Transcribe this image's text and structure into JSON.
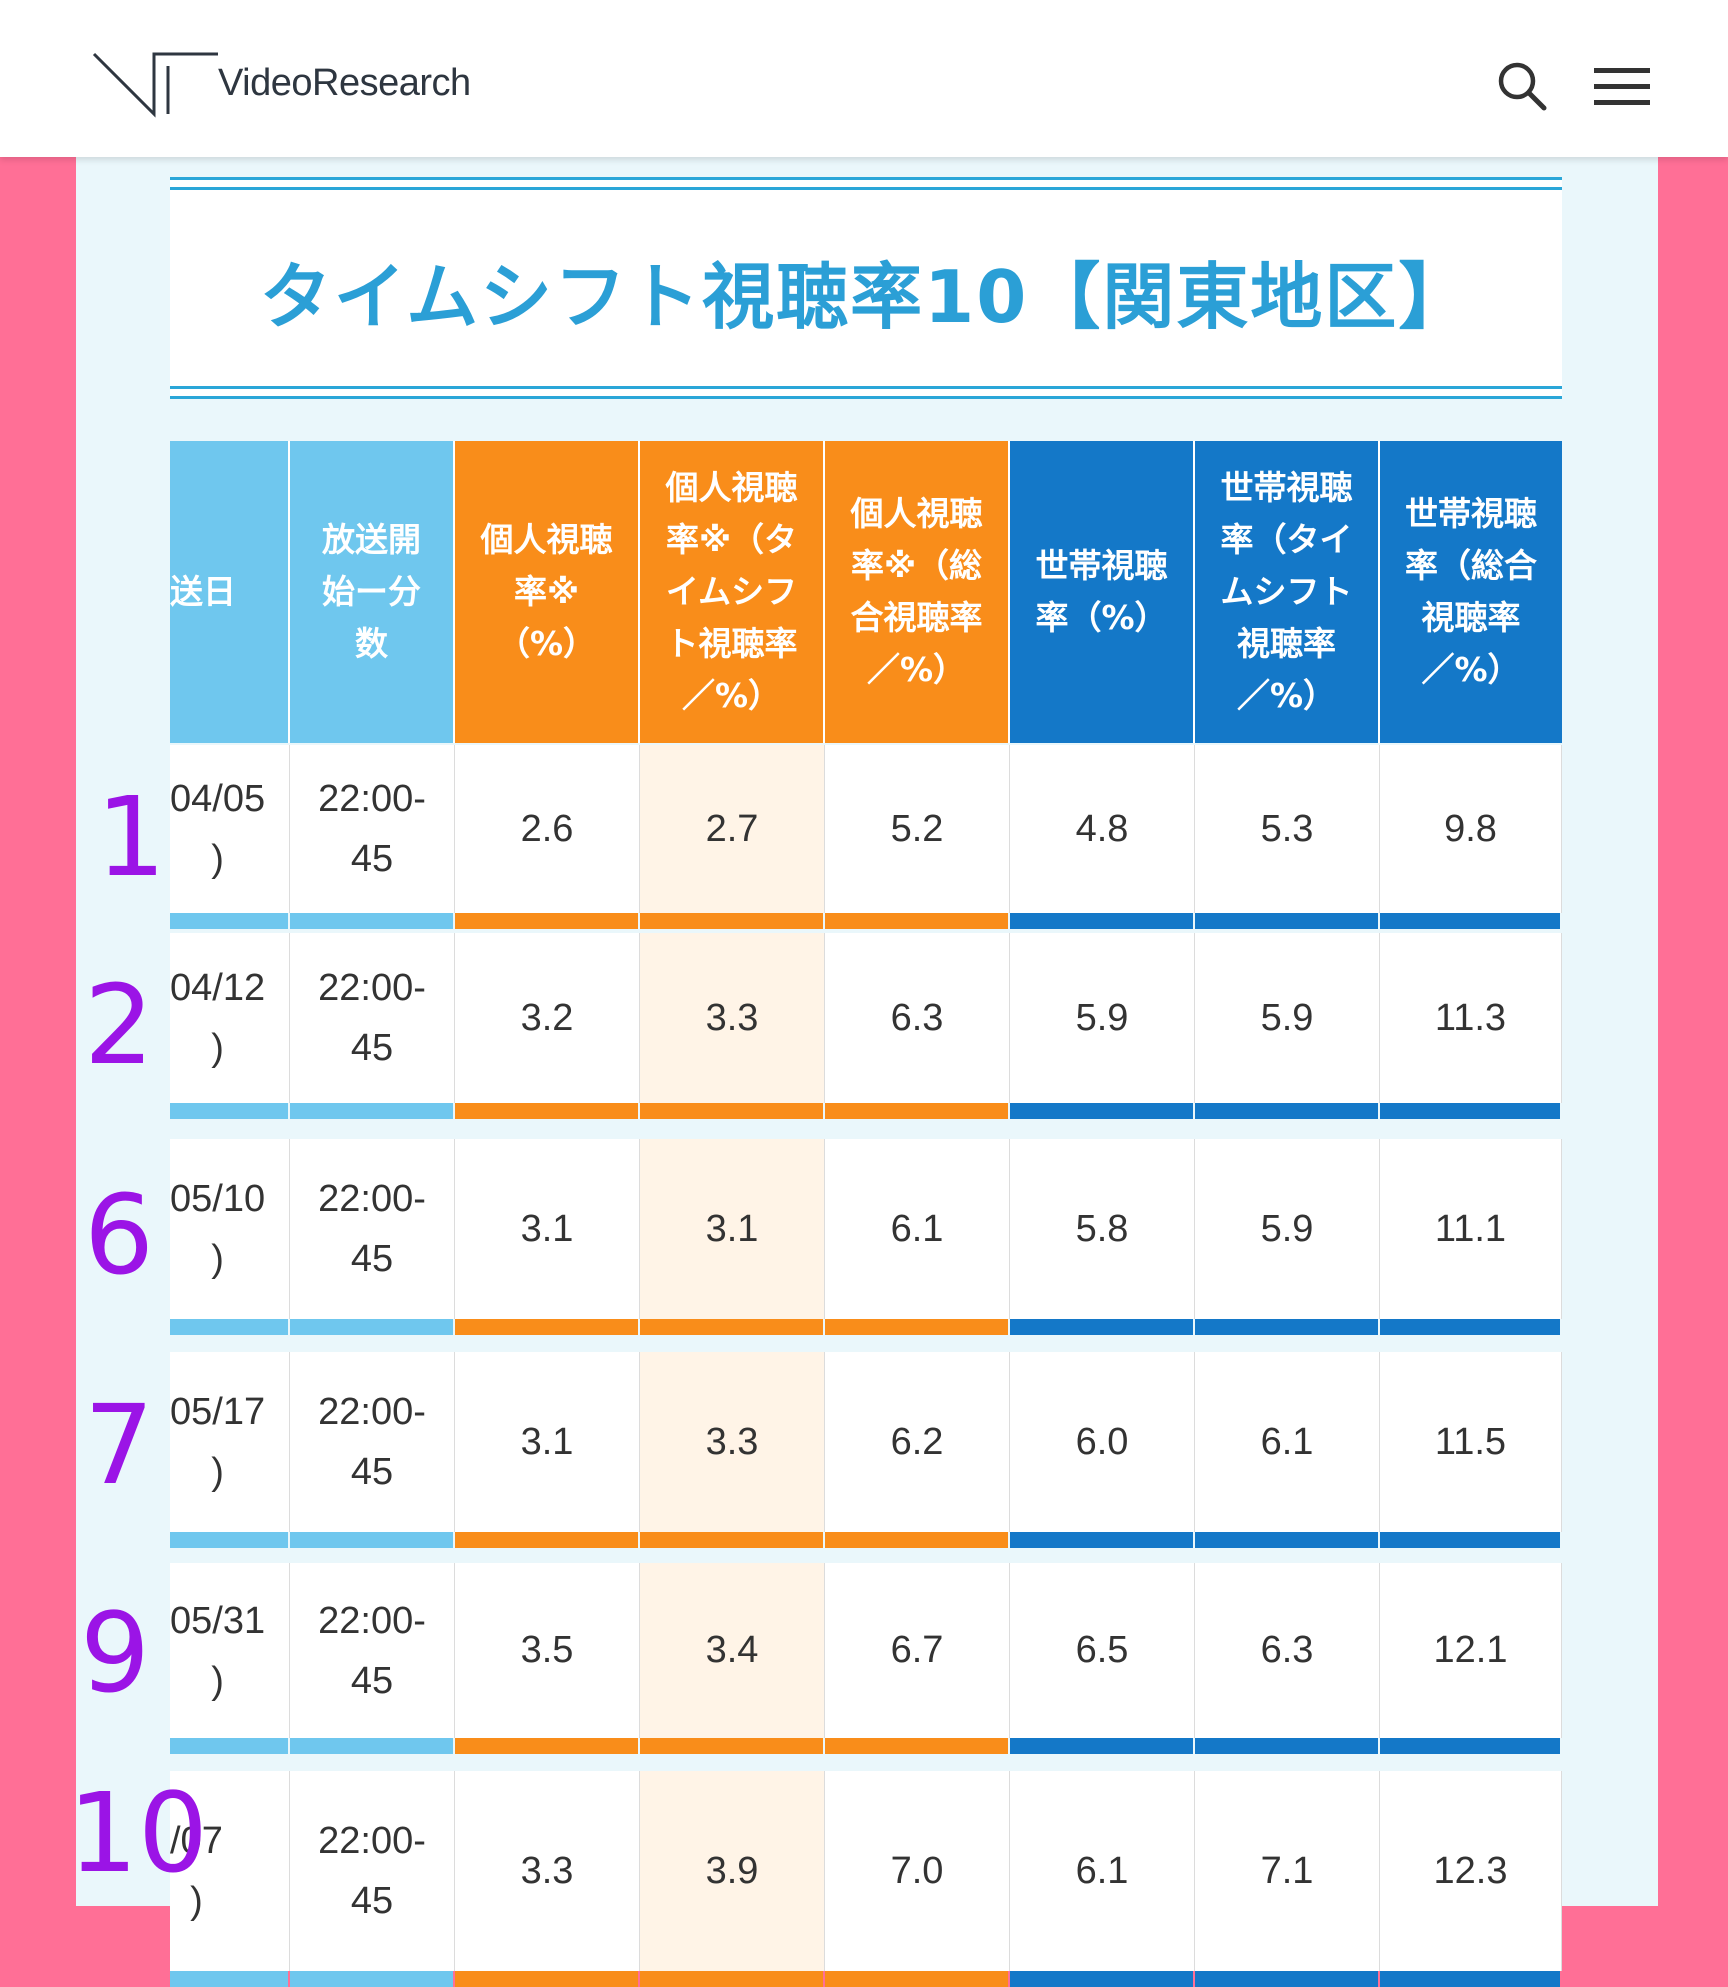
{
  "header": {
    "logo_text": "VideoResearch",
    "icons": {
      "search": "search-icon",
      "menu": "menu-icon"
    }
  },
  "title": "タイムシフト視聴率10【関東地区】",
  "table": {
    "headers": [
      "送日",
      "放送開\n始ー分\n数",
      "個人視聴\n率※\n（%）",
      "個人視聴\n率※（タ\nイムシフ\nト視聴率\n／%）",
      "個人視聴\n率※（総\n合視聴率\n／%）",
      "世帯視聴\n率（%）",
      "世帯視聴\n率（タイ\nムシフト\n視聴率\n／%）",
      "世帯視聴\n率（総合\n視聴率\n／%）"
    ],
    "rows": [
      {
        "rank": "1",
        "date": "04/05\n)",
        "time": "22:00-\n45",
        "values": [
          "2.6",
          "2.7",
          "5.2",
          "4.8",
          "5.3",
          "9.8"
        ]
      },
      {
        "rank": "2",
        "date": "04/12\n)",
        "time": "22:00-\n45",
        "values": [
          "3.2",
          "3.3",
          "6.3",
          "5.9",
          "5.9",
          "11.3"
        ]
      },
      {
        "rank": "6",
        "date": "05/10\n)",
        "time": "22:00-\n45",
        "values": [
          "3.1",
          "3.1",
          "6.1",
          "5.8",
          "5.9",
          "11.1"
        ]
      },
      {
        "rank": "7",
        "date": "05/17\n)",
        "time": "22:00-\n45",
        "values": [
          "3.1",
          "3.3",
          "6.2",
          "6.0",
          "6.1",
          "11.5"
        ]
      },
      {
        "rank": "9",
        "date": "05/31\n)",
        "time": "22:00-\n45",
        "values": [
          "3.5",
          "3.4",
          "6.7",
          "6.5",
          "6.3",
          "12.1"
        ]
      },
      {
        "rank": "10",
        "date": "/07\n)",
        "time": "22:00-\n45",
        "values": [
          "3.3",
          "3.9",
          "7.0",
          "6.1",
          "7.1",
          "12.3"
        ]
      }
    ]
  },
  "colors": {
    "background": "#ff6f96",
    "title": "#2b9fd6",
    "sky": "#6fc7ee",
    "orange": "#f98d1a",
    "blue": "#1478c8",
    "rank": "#9b14e6"
  }
}
